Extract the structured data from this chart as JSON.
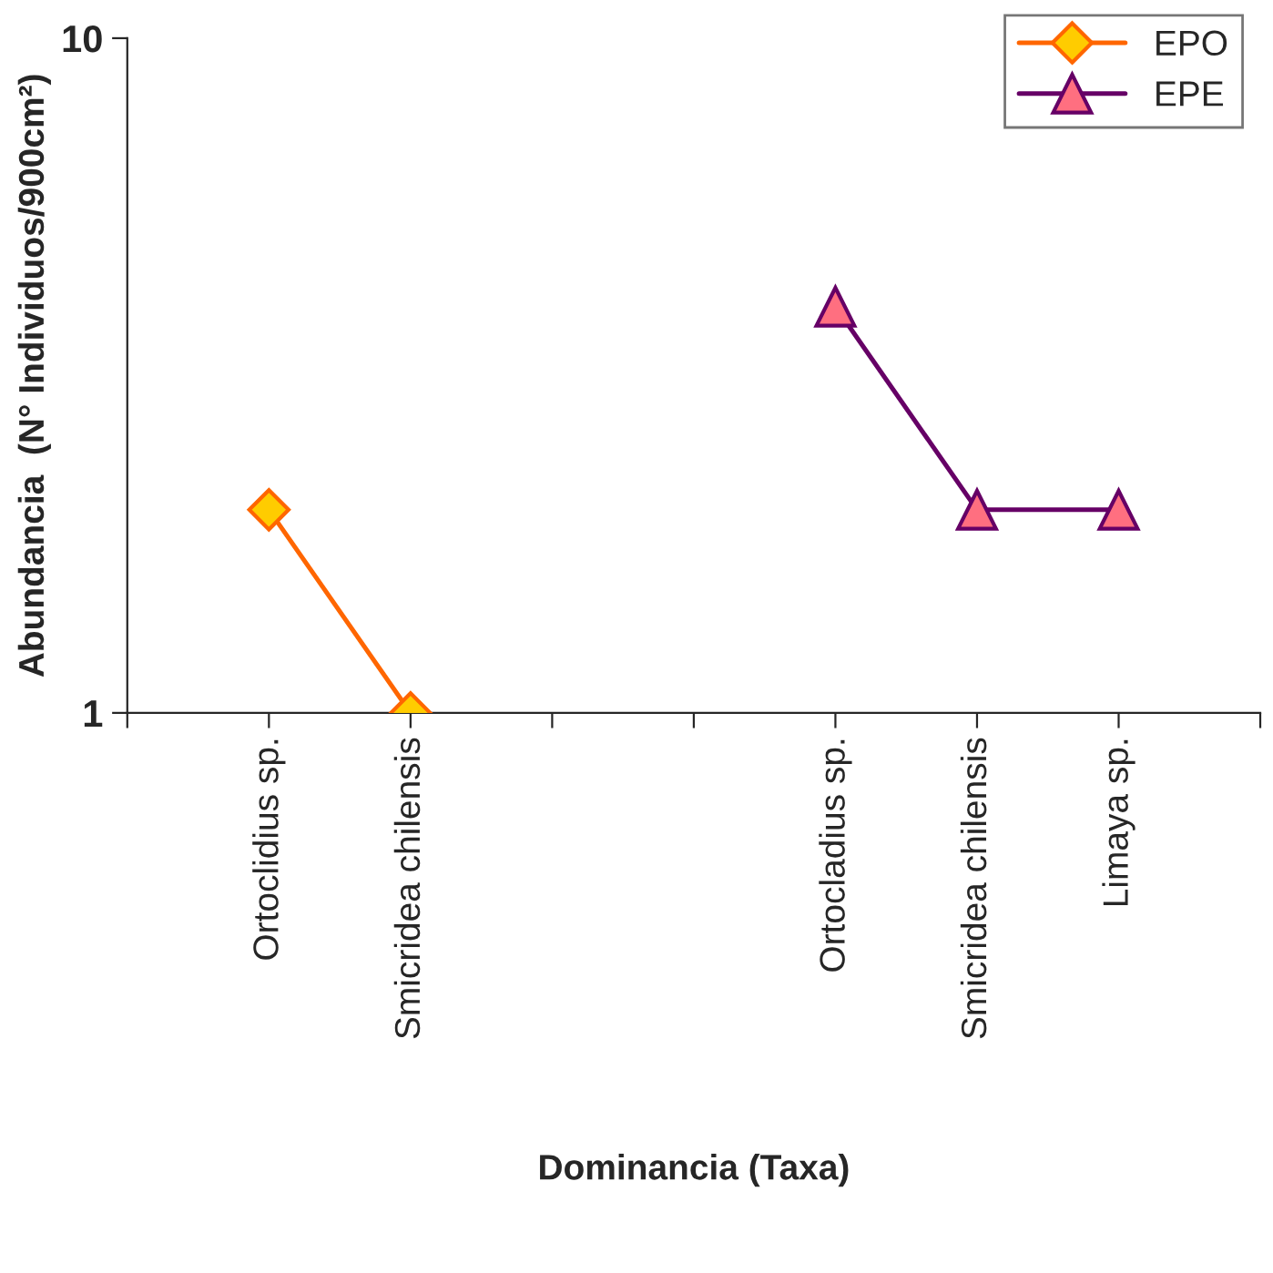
{
  "chart_data": {
    "type": "line",
    "xlabel": "Dominancia (Taxa)",
    "ylabel": "Abundancia  (N° Individuos/900cm²)",
    "categories": [
      null,
      "Ortoclidius sp.",
      "Smicridea chilensis",
      null,
      null,
      "Ortocladius sp.",
      "Smicridea chilensis",
      "Limaya sp.",
      null
    ],
    "series": [
      {
        "name": "EPO",
        "color": "#ff6600",
        "marker": "diamond",
        "values": [
          null,
          2,
          1,
          null,
          null,
          null,
          null,
          null,
          null
        ]
      },
      {
        "name": "EPE",
        "color": "#660066",
        "marker": "triangle",
        "values": [
          null,
          null,
          null,
          null,
          null,
          4,
          2,
          2,
          null
        ]
      }
    ],
    "log": true,
    "ylim": [
      1,
      10
    ],
    "yticks": [
      1,
      10
    ],
    "grid": false,
    "legend": "top right"
  }
}
